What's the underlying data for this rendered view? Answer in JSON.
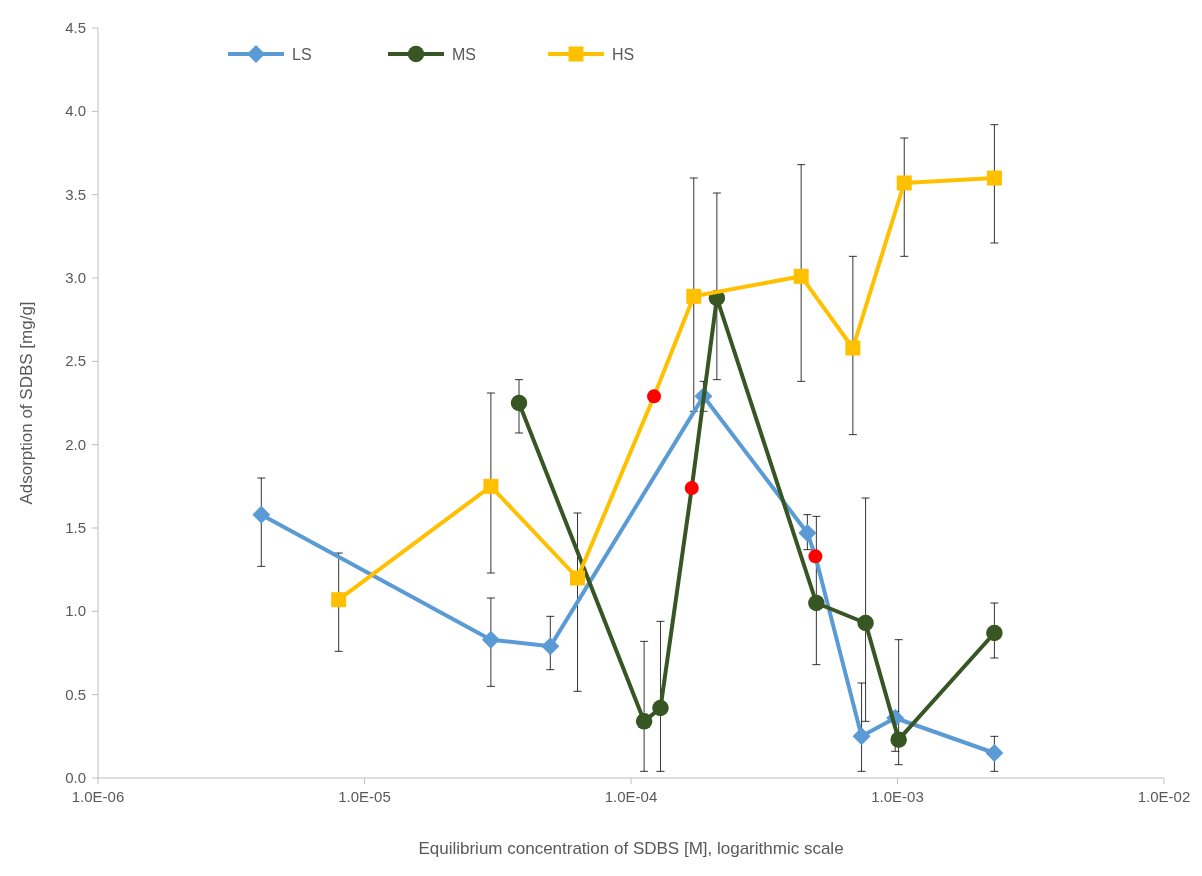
{
  "chart_data": {
    "type": "line",
    "xlabel": "Equilibrium concentration of SDBS [M], logarithmic scale",
    "ylabel": "Adsorption of SDBS [mg/g]",
    "log": "x",
    "legend": "top left",
    "grid": false,
    "line_style": "solid",
    "xlim": [
      1e-06,
      0.01
    ],
    "xticks": [
      {
        "value": 1e-06,
        "label": "1.0E-06"
      },
      {
        "value": 1e-05,
        "label": "1.0E-05"
      },
      {
        "value": 0.0001,
        "label": "1.0E-04"
      },
      {
        "value": 0.001,
        "label": "1.0E-03"
      },
      {
        "value": 0.01,
        "label": "1.0E-02"
      }
    ],
    "ylim": [
      0,
      4.5
    ],
    "yticks": [
      {
        "value": 0,
        "label": "0.0"
      },
      {
        "value": 0.5,
        "label": "0.5"
      },
      {
        "value": 1,
        "label": "1.0"
      },
      {
        "value": 1.5,
        "label": "1.5"
      },
      {
        "value": 2,
        "label": "2.0"
      },
      {
        "value": 2.5,
        "label": "2.5"
      },
      {
        "value": 3,
        "label": "3.0"
      },
      {
        "value": 3.5,
        "label": "3.5"
      },
      {
        "value": 4,
        "label": "4.0"
      },
      {
        "value": 4.5,
        "label": "4.5"
      }
    ],
    "series": [
      {
        "name": "LS",
        "color": "#5b9bd5",
        "marker": "diamond",
        "x": [
          4.1e-06,
          2.98e-05,
          4.98e-05,
          0.000187,
          0.000459,
          0.000492,
          0.000733,
          0.00098,
          0.00231
        ],
        "values": [
          1.58,
          0.83,
          0.79,
          2.29,
          1.47,
          1.33,
          0.25,
          0.36,
          0.15
        ],
        "colors": [
          null,
          null,
          null,
          null,
          null,
          "#ff0000",
          null,
          null,
          null
        ],
        "errors": [
          [
            1.27,
            1.8
          ],
          [
            0.55,
            1.08
          ],
          [
            0.65,
            0.97
          ],
          [
            2.2,
            2.38
          ],
          [
            1.37,
            1.58
          ],
          null,
          [
            0.04,
            0.57
          ],
          [
            0.16,
            0.4
          ],
          [
            0.04,
            0.25
          ]
        ]
      },
      {
        "name": "MS",
        "color": "#375623",
        "marker": "circle",
        "x": [
          3.8e-05,
          0.000112,
          0.000129,
          0.000169,
          0.00021,
          0.000496,
          0.000759,
          0.00101,
          0.00231
        ],
        "values": [
          2.25,
          0.34,
          0.42,
          1.74,
          2.88,
          1.05,
          0.93,
          0.23,
          0.87
        ],
        "colors": [
          null,
          null,
          null,
          "#ff0000",
          null,
          null,
          null,
          null,
          null
        ],
        "errors": [
          [
            2.07,
            2.39
          ],
          [
            0.04,
            0.82
          ],
          [
            0.04,
            0.94
          ],
          null,
          [
            2.39,
            3.51
          ],
          [
            0.68,
            1.57
          ],
          [
            0.34,
            1.68
          ],
          [
            0.08,
            0.83
          ],
          [
            0.72,
            1.05
          ]
        ]
      },
      {
        "name": "HS",
        "color": "#ffc000",
        "marker": "square",
        "x": [
          8e-06,
          2.98e-05,
          6.3e-05,
          0.000122,
          0.000172,
          0.000435,
          0.00068,
          0.00106,
          0.00231
        ],
        "values": [
          1.07,
          1.75,
          1.2,
          2.29,
          2.89,
          3.01,
          2.58,
          3.57,
          3.6
        ],
        "colors": [
          null,
          null,
          null,
          "#ff0000",
          null,
          null,
          null,
          null,
          null
        ],
        "errors": [
          [
            0.76,
            1.35
          ],
          [
            1.23,
            2.31
          ],
          [
            0.52,
            1.59
          ],
          null,
          [
            2.2,
            3.6
          ],
          [
            2.38,
            3.68
          ],
          [
            2.06,
            3.13
          ],
          [
            3.13,
            3.84
          ],
          [
            3.21,
            3.92
          ]
        ]
      }
    ]
  }
}
